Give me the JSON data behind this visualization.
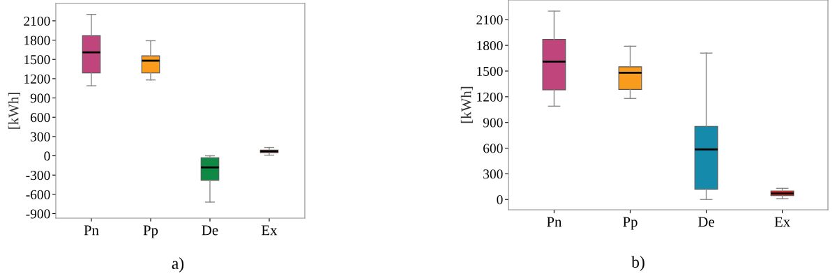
{
  "chart_data": [
    {
      "type": "box",
      "ylabel": "[kWh]",
      "categories": [
        "Pn",
        "Pp",
        "De",
        "Ex"
      ],
      "colors": [
        "#c0457c",
        "#f99b1c",
        "#0e8a45",
        "#e8261c"
      ],
      "boxes": [
        {
          "low": 1090,
          "q1": 1290,
          "median": 1610,
          "q3": 1870,
          "high": 2200
        },
        {
          "low": 1180,
          "q1": 1290,
          "median": 1480,
          "q3": 1555,
          "high": 1790
        },
        {
          "low": -720,
          "q1": -380,
          "median": -180,
          "q3": -30,
          "high": 0
        },
        {
          "low": 10,
          "q1": 50,
          "median": 70,
          "q3": 90,
          "high": 130
        }
      ],
      "ylim": [
        -970,
        2370
      ],
      "yticks": [
        -900,
        -600,
        -300,
        0,
        300,
        600,
        900,
        1200,
        1500,
        1800,
        2100
      ],
      "grid": false,
      "annotations": [
        "a)"
      ]
    },
    {
      "type": "box",
      "ylabel": "[kWh]",
      "categories": [
        "Pn",
        "Pp",
        "De",
        "Ex"
      ],
      "colors": [
        "#c0457c",
        "#f99b1c",
        "#168aab",
        "#e8261c"
      ],
      "boxes": [
        {
          "low": 1090,
          "q1": 1280,
          "median": 1610,
          "q3": 1870,
          "high": 2200
        },
        {
          "low": 1180,
          "q1": 1285,
          "median": 1480,
          "q3": 1550,
          "high": 1790
        },
        {
          "low": 0,
          "q1": 120,
          "median": 585,
          "q3": 855,
          "high": 1710
        },
        {
          "low": 10,
          "q1": 45,
          "median": 70,
          "q3": 100,
          "high": 130
        }
      ],
      "ylim": [
        -120,
        2330
      ],
      "yticks": [
        0,
        300,
        600,
        900,
        1200,
        1500,
        1800,
        2100
      ],
      "grid": false,
      "annotations": [
        "b)"
      ]
    }
  ]
}
